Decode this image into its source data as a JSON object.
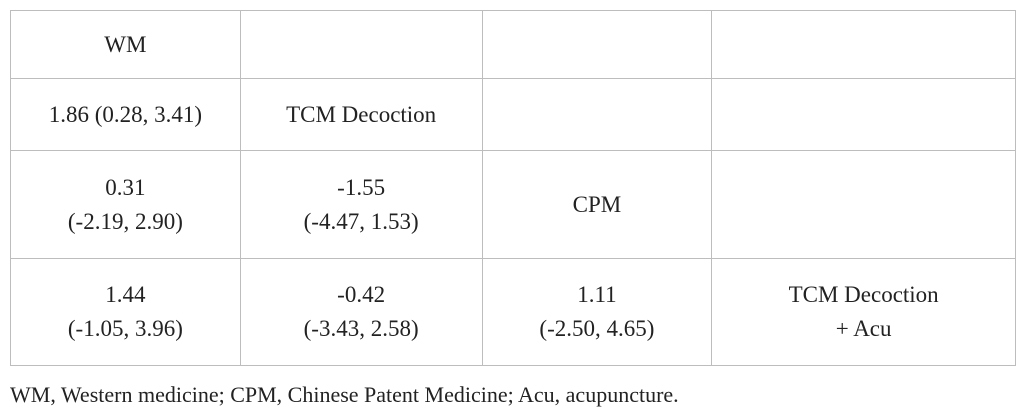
{
  "table": {
    "rows": [
      [
        [
          "WM"
        ],
        null,
        null,
        null
      ],
      [
        [
          "1.86 (0.28, 3.41)"
        ],
        [
          "TCM Decoction"
        ],
        null,
        null
      ],
      [
        [
          "0.31",
          "(-2.19, 2.90)"
        ],
        [
          "-1.55",
          "(-4.47, 1.53)"
        ],
        [
          "CPM"
        ],
        null
      ],
      [
        [
          "1.44",
          "(-1.05, 3.96)"
        ],
        [
          "-0.42",
          "(-3.43, 2.58)"
        ],
        [
          "1.11",
          "(-2.50, 4.65)"
        ],
        [
          "TCM Decoction",
          "+ Acu"
        ]
      ]
    ]
  },
  "footnote": "WM, Western medicine; CPM, Chinese Patent Medicine; Acu, acupuncture."
}
